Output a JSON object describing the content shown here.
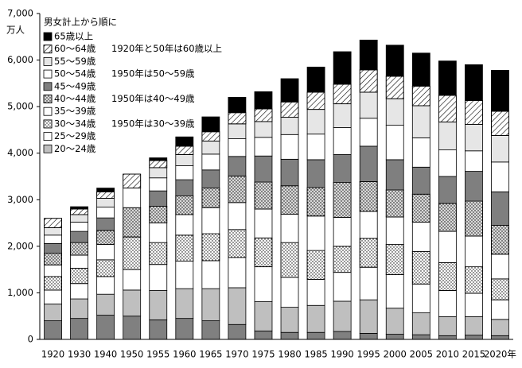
{
  "chart_data": {
    "type": "stacked_bar",
    "y_unit": "万人",
    "legend_title": "男女計上から順に",
    "categories": [
      "1920",
      "1930",
      "1940",
      "1950",
      "1955",
      "1960",
      "1965",
      "1970",
      "1975",
      "1980",
      "1985",
      "1990",
      "1995",
      "2000",
      "2005",
      "2010",
      "2015",
      "2020年"
    ],
    "ylim": [
      0,
      7000
    ],
    "yticks": [
      0,
      {
        "value": 1000,
        "label": "1,000"
      },
      {
        "value": 2000,
        "label": "2,000"
      },
      {
        "value": 3000,
        "label": "3,000"
      },
      {
        "value": 4000,
        "label": "4,000"
      },
      {
        "value": 5000,
        "label": "5,000"
      },
      {
        "value": 6000,
        "label": "6,000"
      },
      {
        "value": 7000,
        "label": "7,000"
      }
    ],
    "series": [
      {
        "name": null,
        "color": "#808080",
        "values": [
          400,
          450,
          520,
          500,
          420,
          450,
          400,
          320,
          180,
          150,
          150,
          170,
          130,
          110,
          100,
          80,
          90,
          80
        ]
      },
      {
        "name": "20～24歳",
        "color": "#bfbfbf",
        "values": [
          360,
          420,
          450,
          560,
          630,
          640,
          690,
          790,
          630,
          540,
          580,
          650,
          720,
          560,
          470,
          410,
          400,
          350
        ]
      },
      {
        "name": "25～29歳",
        "color": "#ffffff",
        "values": [
          300,
          330,
          380,
          440,
          560,
          590,
          600,
          650,
          750,
          640,
          560,
          620,
          700,
          720,
          620,
          560,
          500,
          420
        ]
      },
      {
        "name": "30～34歳",
        "color": "#ffffff",
        "pattern": "dots",
        "note": "1950年は30～39歳",
        "values": [
          290,
          330,
          360,
          700,
          470,
          560,
          580,
          600,
          620,
          750,
          620,
          560,
          620,
          650,
          700,
          600,
          570,
          450
        ]
      },
      {
        "name": "35～39歳",
        "color": "#ffffff",
        "values": [
          250,
          280,
          330,
          null,
          420,
          440,
          560,
          580,
          620,
          610,
          740,
          620,
          580,
          590,
          630,
          670,
          660,
          530
        ]
      },
      {
        "name": "40～44歳",
        "color": "#d9d9d9",
        "pattern": "dots",
        "note": "1950年は40～49歳",
        "values": [
          250,
          270,
          300,
          630,
          360,
          400,
          420,
          570,
          580,
          610,
          610,
          750,
          640,
          580,
          600,
          600,
          750,
          620
        ]
      },
      {
        "name": "45～49歳",
        "color": "#7f7f7f",
        "values": [
          210,
          240,
          270,
          null,
          330,
          350,
          390,
          420,
          560,
          570,
          600,
          600,
          760,
          650,
          580,
          580,
          640,
          720
        ]
      },
      {
        "name": "50～54歳",
        "color": "#ffffff",
        "note": "1950年は50～59歳",
        "values": [
          180,
          200,
          230,
          420,
          280,
          300,
          340,
          380,
          400,
          530,
          550,
          580,
          600,
          740,
          630,
          570,
          440,
          640
        ]
      },
      {
        "name": "55～59歳",
        "color": "#e6e6e6",
        "values": [
          160,
          160,
          190,
          null,
          220,
          240,
          280,
          320,
          340,
          370,
          530,
          510,
          560,
          570,
          690,
          600,
          570,
          570
        ]
      },
      {
        "name": "60～64歳",
        "color": "#ffffff",
        "pattern": "hatch",
        "note": "1920年と50年は60歳以上",
        "values": [
          200,
          120,
          140,
          300,
          150,
          180,
          200,
          240,
          270,
          330,
          370,
          420,
          480,
          480,
          420,
          570,
          510,
          520
        ]
      },
      {
        "name": "65歳以上",
        "color": "#000000",
        "values": [
          null,
          50,
          80,
          null,
          60,
          200,
          320,
          330,
          370,
          500,
          540,
          700,
          640,
          670,
          710,
          740,
          770,
          880
        ]
      }
    ]
  }
}
